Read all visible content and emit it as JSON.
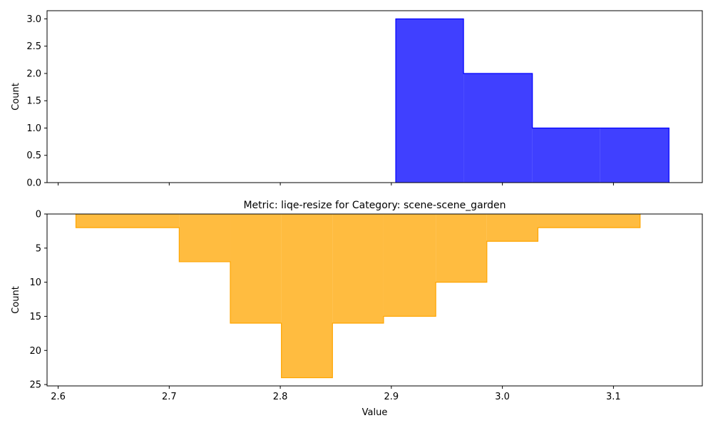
{
  "chart_data": [
    {
      "type": "histogram",
      "panel": "top",
      "title": "",
      "xlabel": "",
      "ylabel": "Count",
      "xlim": [
        2.59,
        3.18
      ],
      "ylim": [
        0,
        3.15
      ],
      "y_inverted": false,
      "yticks": [
        0.0,
        0.5,
        1.0,
        1.5,
        2.0,
        2.5,
        3.0
      ],
      "ytick_labels": [
        "0.0",
        "0.5",
        "1.0",
        "1.5",
        "2.0",
        "2.5",
        "3.0"
      ],
      "xticks": [
        2.6,
        2.7,
        2.8,
        2.9,
        3.0,
        3.1
      ],
      "show_xtick_labels": false,
      "color": "#0000ff",
      "bin_edges": [
        2.904,
        2.965,
        3.027,
        3.088,
        3.15
      ],
      "counts": [
        3,
        2,
        1,
        1
      ]
    },
    {
      "type": "histogram",
      "panel": "bottom",
      "title": "Metric: liqe-resize for Category: scene-scene_garden",
      "xlabel": "Value",
      "ylabel": "Count",
      "xlim": [
        2.59,
        3.18
      ],
      "ylim": [
        0,
        25.2
      ],
      "y_inverted": true,
      "yticks": [
        0,
        5,
        10,
        15,
        20,
        25
      ],
      "ytick_labels": [
        "0",
        "5",
        "10",
        "15",
        "20",
        "25"
      ],
      "xticks": [
        2.6,
        2.7,
        2.8,
        2.9,
        3.0,
        3.1
      ],
      "xtick_labels": [
        "2.6",
        "2.7",
        "2.8",
        "2.9",
        "3.0",
        "3.1"
      ],
      "color": "#ffa500",
      "bin_edges": [
        2.616,
        2.709,
        2.755,
        2.801,
        2.847,
        2.893,
        2.94,
        2.986,
        3.032,
        3.124
      ],
      "counts": [
        2,
        7,
        16,
        24,
        16,
        15,
        10,
        4,
        2
      ]
    }
  ]
}
